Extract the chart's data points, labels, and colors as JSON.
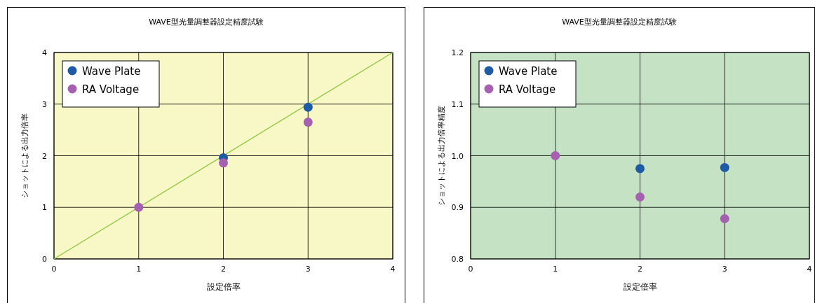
{
  "chart_data": [
    {
      "type": "scatter",
      "title": "WAVE型光量調整器設定精度試験",
      "xlabel": "設定倍率",
      "ylabel": "ショットによる出力倍率",
      "x": [
        1,
        2,
        3
      ],
      "xlim": [
        0,
        4
      ],
      "xticks": [
        0,
        1,
        2,
        3,
        4
      ],
      "ylim": [
        0,
        4
      ],
      "yticks": [
        0,
        1,
        2,
        3,
        4
      ],
      "grid": true,
      "legend": "top left",
      "marker": "circle",
      "series": [
        {
          "name": "Wave Plate",
          "color": "#1f5aa6",
          "values": [
            null,
            1.96,
            2.94
          ]
        },
        {
          "name": "RA Voltage",
          "color": "#a660b0",
          "values": [
            1.0,
            1.86,
            2.65
          ]
        },
        {
          "type": "line",
          "marker": "none",
          "color": "#8cc63e",
          "x": [
            0,
            4
          ],
          "values": [
            0,
            4
          ]
        }
      ]
    },
    {
      "type": "scatter",
      "title": "WAVE型光量調整器設定精度試験",
      "xlabel": "設定倍率",
      "ylabel": "ショットによる出力倍率精度",
      "x": [
        1,
        2,
        3
      ],
      "xlim": [
        0,
        4
      ],
      "xticks": [
        0,
        1,
        2,
        3,
        4
      ],
      "ylim": [
        0.8,
        1.2
      ],
      "yticks": [
        {
          "value": 0.8,
          "label": "0.8"
        },
        {
          "value": 0.9,
          "label": "0.9"
        },
        {
          "value": 1.0,
          "label": "1.0"
        },
        {
          "value": 1.1,
          "label": "1.1"
        },
        {
          "value": 1.2,
          "label": "1.2"
        }
      ],
      "grid": true,
      "legend": "top left",
      "marker": "circle",
      "series": [
        {
          "name": "Wave Plate",
          "color": "#1f5aa6",
          "values": [
            null,
            0.975,
            0.977
          ]
        },
        {
          "name": "RA Voltage",
          "color": "#a660b0",
          "values": [
            1.0,
            0.92,
            0.878
          ]
        }
      ]
    }
  ]
}
